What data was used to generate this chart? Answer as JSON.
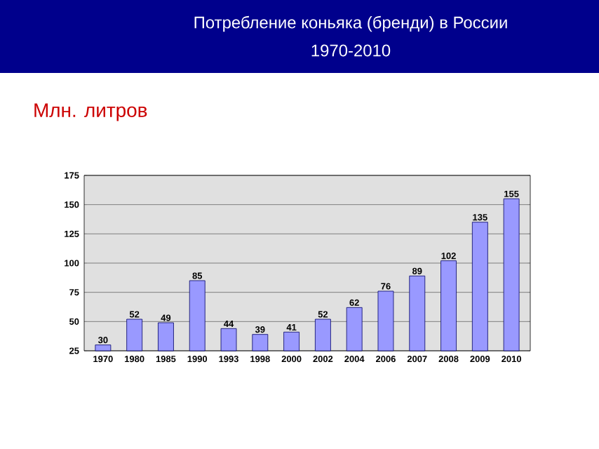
{
  "chart_data": {
    "type": "bar",
    "title": "Потребление коньяка (бренди) в России",
    "subtitle": "1970-2010",
    "ylabel": "Млн. литров",
    "categories": [
      "1970",
      "1980",
      "1985",
      "1990",
      "1993",
      "1998",
      "2000",
      "2002",
      "2004",
      "2006",
      "2007",
      "2008",
      "2009",
      "2010"
    ],
    "values": [
      30,
      52,
      49,
      85,
      44,
      39,
      41,
      52,
      62,
      76,
      89,
      102,
      135,
      155
    ],
    "color": "#9999ff",
    "ylim": [
      25,
      175
    ],
    "yticks": [
      25,
      50,
      75,
      100,
      125,
      150,
      175
    ],
    "grid": "y",
    "data_labels": true
  }
}
